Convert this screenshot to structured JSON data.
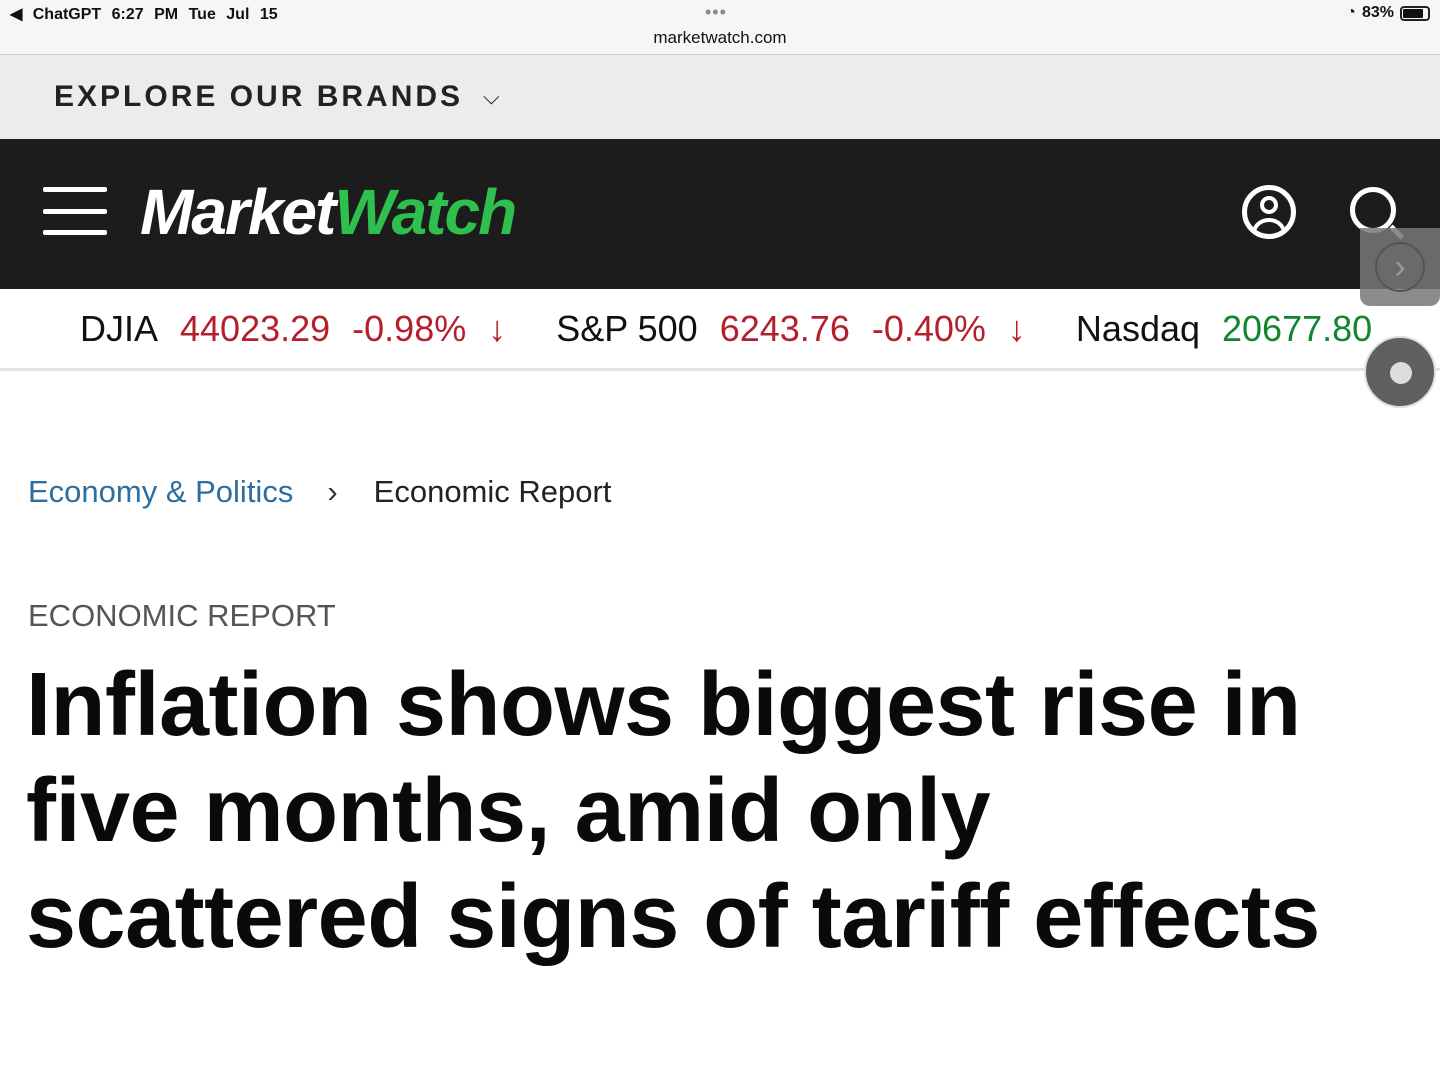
{
  "status_bar": {
    "back_app": "◀ ChatGPT",
    "time": "6:27 PM",
    "date": "Tue Jul 15",
    "url": "marketwatch.com",
    "battery": "83%",
    "battery_level": 0.83
  },
  "brands": {
    "label": "EXPLORE OUR BRANDS",
    "chevron": "⌵"
  },
  "nav": {
    "logo_part1": "Market",
    "logo_part2": "Watch",
    "brand_color": "#2fbf4e"
  },
  "ticker": [
    {
      "name": "DJIA",
      "value": "44023.29",
      "change": "-0.98%",
      "arrow": "↓",
      "direction": "down"
    },
    {
      "name": "S&P 500",
      "value": "6243.76",
      "change": "-0.40%",
      "arrow": "↓",
      "direction": "down"
    },
    {
      "name": "Nasdaq",
      "value": "20677.80",
      "direction": "up"
    }
  ],
  "overlay": {
    "next": "›"
  },
  "breadcrumb": {
    "parent": "Economy & Politics",
    "separator": "›",
    "current": "Economic Report"
  },
  "article": {
    "kicker": "ECONOMIC REPORT",
    "headline": "Inflation shows biggest rise in five months, amid only scattered signs of tariff effects"
  }
}
